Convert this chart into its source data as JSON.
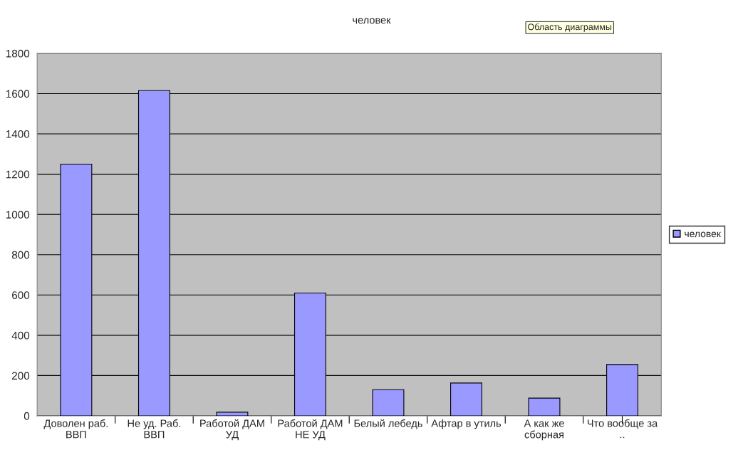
{
  "chart_data": {
    "type": "bar",
    "title": "человек",
    "categories": [
      "Доволен раб.\nВВП",
      "Не уд. Раб.\nВВП",
      "Работой ДАМ\nУД",
      "Работой ДАМ\nНЕ УД",
      "Белый лебедь",
      "Афтар в утиль",
      "А как же\nсборная",
      "Что вообще за\n.."
    ],
    "series": [
      {
        "name": "человек",
        "color": "#9999ff",
        "values": [
          1250,
          1615,
          18,
          610,
          130,
          163,
          88,
          255
        ]
      }
    ],
    "ylim": [
      0,
      1800
    ],
    "yticks": [
      0,
      200,
      400,
      600,
      800,
      1000,
      1200,
      1400,
      1600,
      1800
    ],
    "grid": "y",
    "legend": "right",
    "annotations": [
      "Область диаграммы"
    ]
  }
}
